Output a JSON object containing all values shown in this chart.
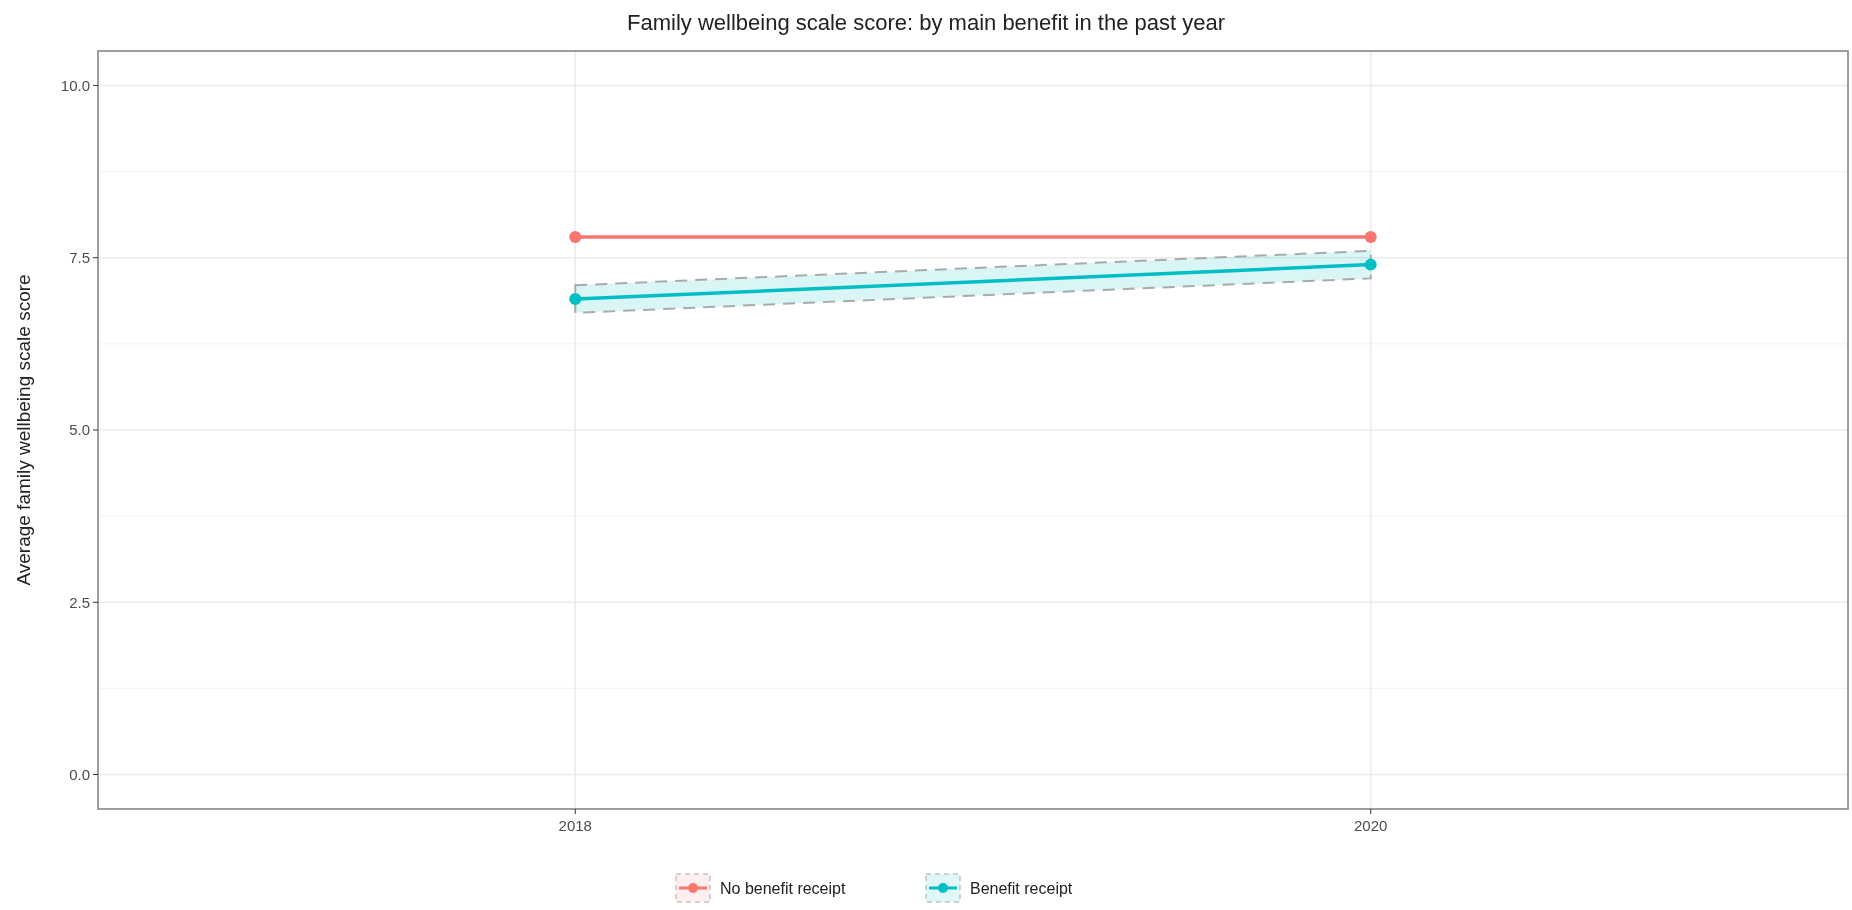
{
  "chart_data": {
    "type": "line",
    "title": "Family wellbeing scale score: by main benefit in the past year",
    "ylabel": "Average family wellbeing scale score",
    "x": [
      2018,
      2020
    ],
    "xlim": [
      2016.8,
      2021.2
    ],
    "xticks": [
      2018,
      2020
    ],
    "ylim": [
      -0.5,
      10.5
    ],
    "yticks": [
      {
        "value": 0,
        "label": "0.0"
      },
      {
        "value": 2.5,
        "label": "2.5"
      },
      {
        "value": 5,
        "label": "5.0"
      },
      {
        "value": 7.5,
        "label": "7.5"
      },
      {
        "value": 10,
        "label": "10.0"
      }
    ],
    "grid": true,
    "legend": "bottom",
    "marker": "circle",
    "line_style": "solid",
    "series": [
      {
        "name": "No benefit receipt",
        "color": "#f8766d",
        "values": [
          7.8,
          7.8
        ]
      },
      {
        "name": "Benefit receipt",
        "color": "#00bfc4",
        "values": [
          6.9,
          7.4
        ],
        "lower": [
          6.7,
          7.2
        ],
        "upper": [
          7.1,
          7.6
        ]
      }
    ]
  }
}
